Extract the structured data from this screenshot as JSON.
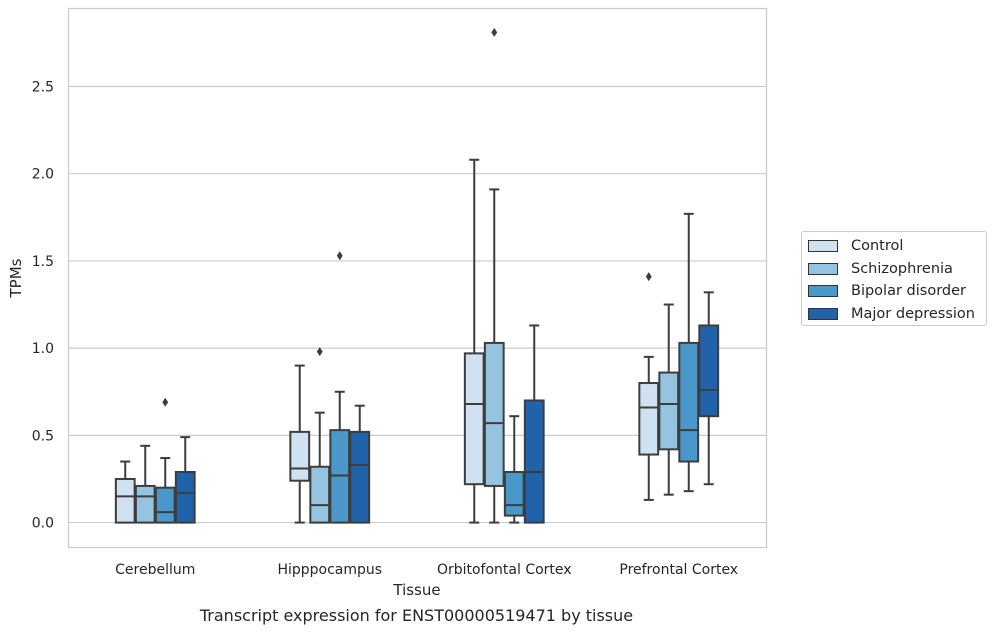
{
  "chart_data": {
    "type": "boxplot",
    "title": "",
    "caption": "Transcript expression for ENST00000519471 by tissue",
    "xlabel": "Tissue",
    "ylabel": "TPMs",
    "ylim": [
      -0.14,
      2.95
    ],
    "yticks": [
      "0.0",
      "0.5",
      "1.0",
      "1.5",
      "2.0",
      "2.5"
    ],
    "grid": true,
    "legend_position": "right",
    "categories": [
      "Cerebellum",
      "Hipppocampus",
      "Orbitofontal Cortex",
      "Prefrontal Cortex"
    ],
    "series": [
      {
        "name": "Control",
        "color": "#d0e1f2",
        "boxes": [
          {
            "whisker_low": 0.0,
            "q1": 0.0,
            "median": 0.15,
            "q3": 0.25,
            "whisker_high": 0.35,
            "outliers": []
          },
          {
            "whisker_low": 0.0,
            "q1": 0.24,
            "median": 0.31,
            "q3": 0.52,
            "whisker_high": 0.9,
            "outliers": []
          },
          {
            "whisker_low": 0.0,
            "q1": 0.22,
            "median": 0.68,
            "q3": 0.97,
            "whisker_high": 2.08,
            "outliers": []
          },
          {
            "whisker_low": 0.13,
            "q1": 0.39,
            "median": 0.66,
            "q3": 0.8,
            "whisker_high": 0.95,
            "outliers": [
              1.41
            ]
          }
        ]
      },
      {
        "name": "Schizophrenia",
        "color": "#94c4df",
        "boxes": [
          {
            "whisker_low": 0.0,
            "q1": 0.0,
            "median": 0.15,
            "q3": 0.21,
            "whisker_high": 0.44,
            "outliers": []
          },
          {
            "whisker_low": 0.0,
            "q1": 0.0,
            "median": 0.1,
            "q3": 0.32,
            "whisker_high": 0.63,
            "outliers": [
              0.98
            ]
          },
          {
            "whisker_low": 0.0,
            "q1": 0.21,
            "median": 0.57,
            "q3": 1.03,
            "whisker_high": 1.91,
            "outliers": [
              2.81
            ]
          },
          {
            "whisker_low": 0.16,
            "q1": 0.42,
            "median": 0.68,
            "q3": 0.86,
            "whisker_high": 1.25,
            "outliers": []
          }
        ]
      },
      {
        "name": "Bipolar disorder",
        "color": "#4a98c9",
        "boxes": [
          {
            "whisker_low": 0.0,
            "q1": 0.0,
            "median": 0.06,
            "q3": 0.2,
            "whisker_high": 0.37,
            "outliers": [
              0.69
            ]
          },
          {
            "whisker_low": 0.0,
            "q1": 0.0,
            "median": 0.27,
            "q3": 0.53,
            "whisker_high": 0.75,
            "outliers": [
              1.53
            ]
          },
          {
            "whisker_low": 0.0,
            "q1": 0.04,
            "median": 0.1,
            "q3": 0.29,
            "whisker_high": 0.61,
            "outliers": []
          },
          {
            "whisker_low": 0.18,
            "q1": 0.35,
            "median": 0.53,
            "q3": 1.03,
            "whisker_high": 1.77,
            "outliers": []
          }
        ]
      },
      {
        "name": "Major depression",
        "color": "#2163aa",
        "boxes": [
          {
            "whisker_low": 0.0,
            "q1": 0.0,
            "median": 0.17,
            "q3": 0.29,
            "whisker_high": 0.49,
            "outliers": []
          },
          {
            "whisker_low": 0.0,
            "q1": 0.0,
            "median": 0.33,
            "q3": 0.52,
            "whisker_high": 0.67,
            "outliers": []
          },
          {
            "whisker_low": 0.0,
            "q1": 0.0,
            "median": 0.29,
            "q3": 0.7,
            "whisker_high": 1.13,
            "outliers": []
          },
          {
            "whisker_low": 0.22,
            "q1": 0.61,
            "median": 0.76,
            "q3": 1.13,
            "whisker_high": 1.32,
            "outliers": []
          }
        ]
      }
    ]
  }
}
